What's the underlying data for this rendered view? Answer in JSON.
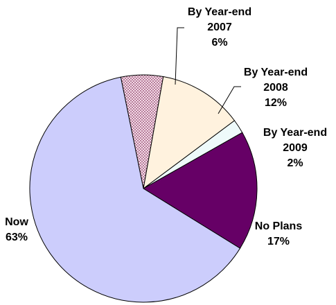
{
  "chart_data": {
    "type": "pie",
    "title": "",
    "slices": [
      {
        "label_lines": [
          "By Year-end",
          "2007",
          "6%"
        ],
        "value": 6,
        "color": "#e8c7d8",
        "pattern": "dots"
      },
      {
        "label_lines": [
          "By Year-end",
          "2008",
          "12%"
        ],
        "value": 12,
        "color": "#fff2de",
        "pattern": "none"
      },
      {
        "label_lines": [
          "By Year-end",
          "2009",
          "2%"
        ],
        "value": 2,
        "color": "#eefafa",
        "pattern": "none"
      },
      {
        "label_lines": [
          "No Plans",
          "17%"
        ],
        "value": 17,
        "color": "#660066",
        "pattern": "none"
      },
      {
        "label_lines": [
          "Now",
          "63%"
        ],
        "value": 63,
        "color": "#cccdfc",
        "pattern": "none"
      }
    ],
    "legend": "none"
  }
}
